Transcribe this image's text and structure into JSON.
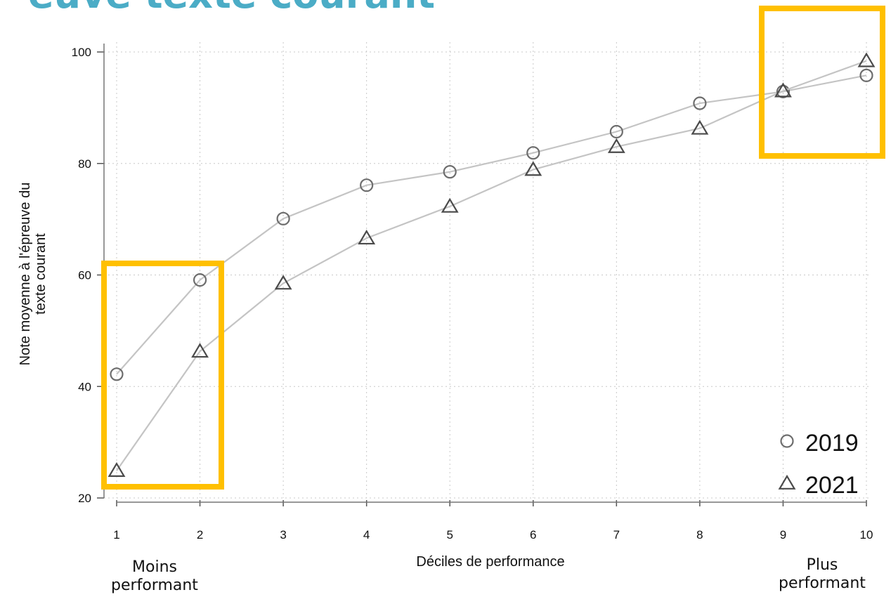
{
  "slide": {
    "title": "euve texte courant",
    "note_left_line1": "Moins",
    "note_left_line2": "performant",
    "note_right_line1": "Plus",
    "note_right_line2": "performant",
    "highlight_color": "#FFC000",
    "title_color": "#4BACC6"
  },
  "chart_data": {
    "type": "line",
    "title": "",
    "xlabel": "Déciles de performance",
    "ylabel_line1": "Note moyenne à l'épreuve du",
    "ylabel_line2": "texte courant",
    "x": [
      1,
      2,
      3,
      4,
      5,
      6,
      7,
      8,
      9,
      10
    ],
    "x_ticks": [
      "1",
      "2",
      "3",
      "4",
      "5",
      "6",
      "7",
      "8",
      "9",
      "10"
    ],
    "y_ticks": [
      "20",
      "40",
      "60",
      "80",
      "100"
    ],
    "xlim": [
      1,
      10
    ],
    "ylim": [
      20,
      100
    ],
    "grid": true,
    "legend_position": "bottom-right",
    "series": [
      {
        "name": "2019",
        "marker": "circle",
        "values": [
          42.2,
          59.1,
          70.1,
          76.1,
          78.5,
          81.9,
          85.7,
          90.8,
          92.9,
          95.8
        ]
      },
      {
        "name": "2021",
        "marker": "triangle",
        "values": [
          24.9,
          46.3,
          58.5,
          66.6,
          72.3,
          78.9,
          83.0,
          86.3,
          93.0,
          98.4
        ]
      }
    ],
    "highlights": [
      {
        "label": "Moins performant",
        "x_range": [
          1,
          2
        ],
        "y_range": [
          20,
          60
        ]
      },
      {
        "label": "Plus performant",
        "x_range": [
          9,
          10
        ],
        "y_range": [
          83,
          100
        ]
      }
    ]
  }
}
